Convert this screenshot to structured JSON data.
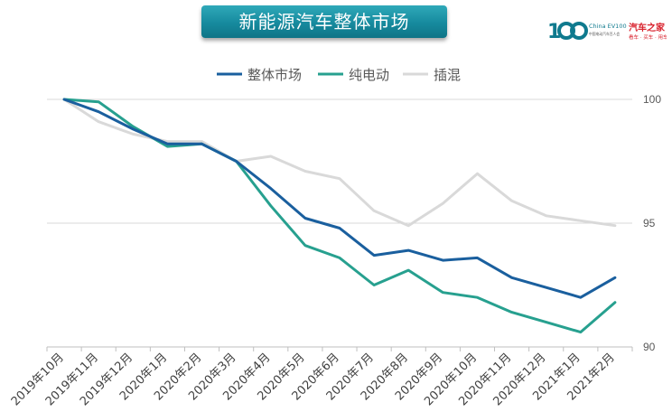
{
  "banner_title": "新能源汽车整体市场",
  "logos": {
    "evcars": "China EV100",
    "evcars_sub": "中国电动汽车百人会",
    "autohome": "汽车之家",
    "autohome_sub": "看车 · 买车 · 用车"
  },
  "colors": {
    "overall": "#1a5f9e",
    "bev": "#27a08f",
    "phev": "#d9d9d9",
    "banner": "#1b8fa3"
  },
  "chart_data": {
    "type": "line",
    "title": "新能源汽车整体市场",
    "categories": [
      "2019年10月",
      "2019年11月",
      "2019年12月",
      "2020年1月",
      "2020年2月",
      "2020年3月",
      "2020年4月",
      "2020年5月",
      "2020年6月",
      "2020年7月",
      "2020年8月",
      "2020年9月",
      "2020年10月",
      "2020年11月",
      "2020年12月",
      "2021年1月",
      "2021年2月"
    ],
    "series": [
      {
        "name": "整体市场",
        "color": "#1a5f9e",
        "values": [
          100,
          99.5,
          98.8,
          98.2,
          98.2,
          97.5,
          96.4,
          95.2,
          94.8,
          93.7,
          93.9,
          93.5,
          93.6,
          92.8,
          92.4,
          92.0,
          92.8
        ]
      },
      {
        "name": "纯电动",
        "color": "#27a08f",
        "values": [
          100,
          99.9,
          98.9,
          98.1,
          98.2,
          97.5,
          95.7,
          94.1,
          93.6,
          92.5,
          93.1,
          92.2,
          92.0,
          91.4,
          91.0,
          90.6,
          91.8
        ]
      },
      {
        "name": "插混",
        "color": "#d9d9d9",
        "values": [
          100,
          99.1,
          98.6,
          98.3,
          98.3,
          97.5,
          97.7,
          97.1,
          96.8,
          95.5,
          94.9,
          95.8,
          97.0,
          95.9,
          95.3,
          95.1,
          94.9
        ]
      }
    ],
    "y_ticks": [
      "100",
      "95",
      "90"
    ],
    "ylim": [
      90,
      100
    ],
    "grid": true,
    "legend_position": "top-center",
    "y_axis_side": "right"
  }
}
